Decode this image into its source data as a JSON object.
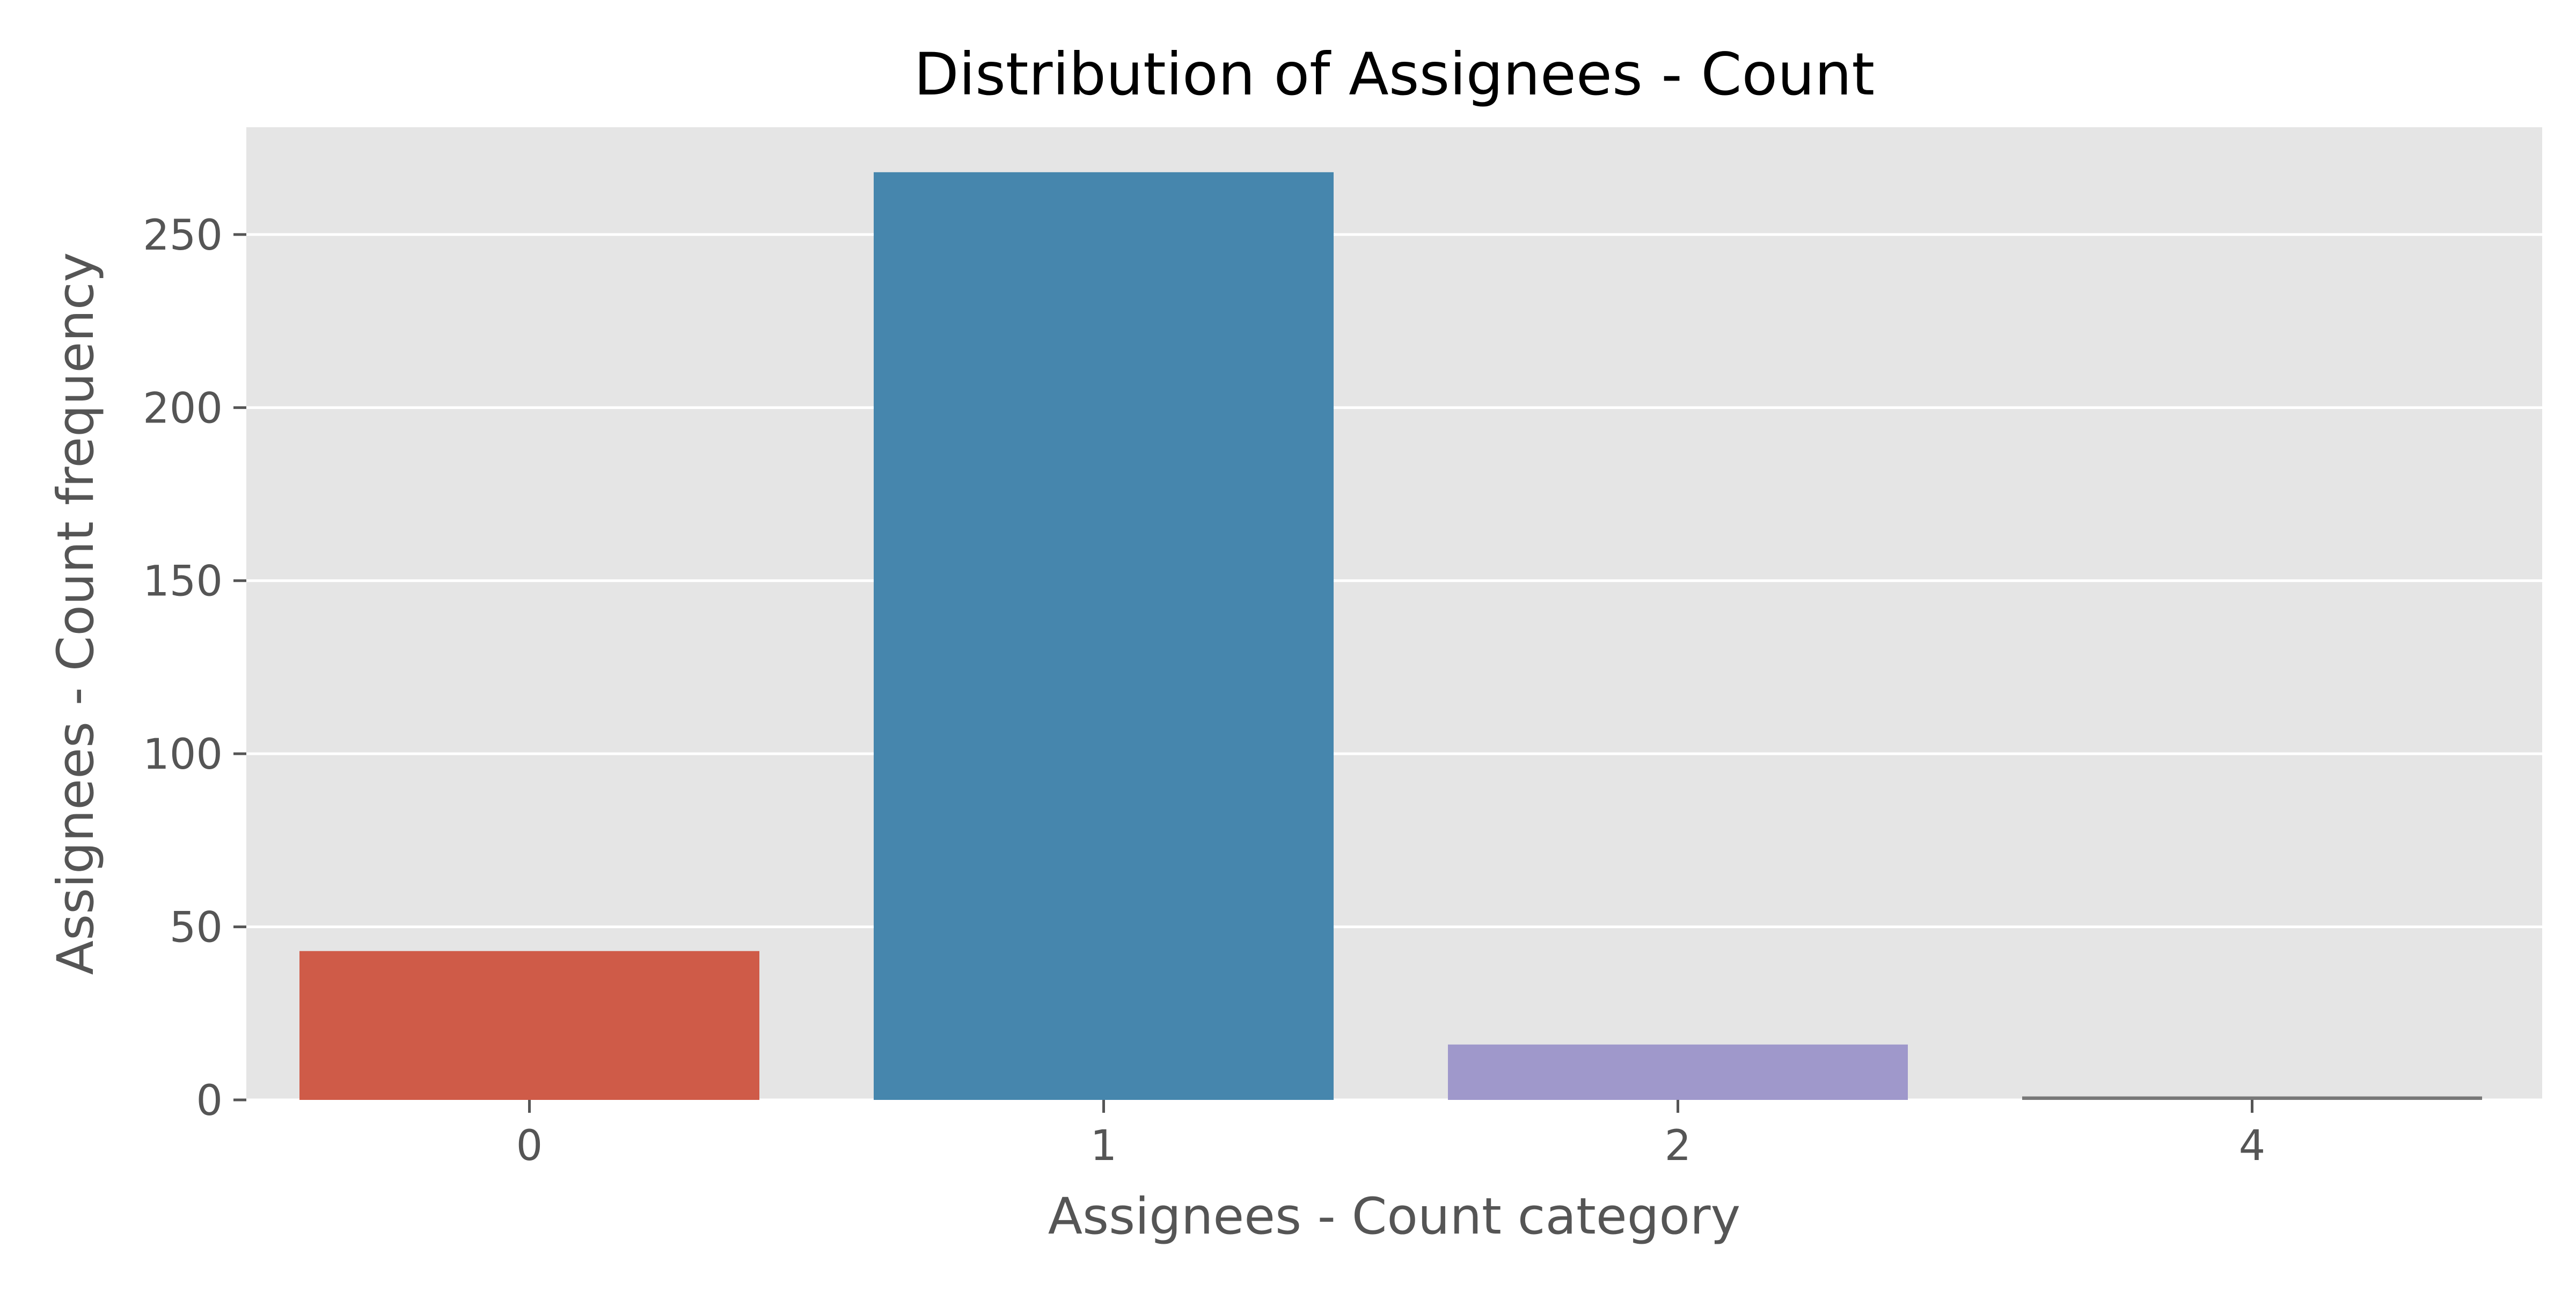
{
  "chart_data": {
    "type": "bar",
    "title": "Distribution of Assignees - Count",
    "xlabel": "Assignees - Count category",
    "ylabel": "Assignees - Count frequency",
    "categories": [
      "0",
      "1",
      "2",
      "4"
    ],
    "values": [
      43,
      268,
      16,
      1
    ],
    "ylim": [
      0,
      281
    ],
    "yticks": [
      0,
      50,
      100,
      150,
      200,
      250
    ],
    "ytick_labels": [
      "0",
      "50",
      "100",
      "150",
      "200",
      "250"
    ],
    "grid": true,
    "colors": [
      "#cf5b48",
      "#4686ad",
      "#9f98cb",
      "#787878"
    ],
    "background_color": "#e5e5e5",
    "grid_color": "#ffffff"
  }
}
